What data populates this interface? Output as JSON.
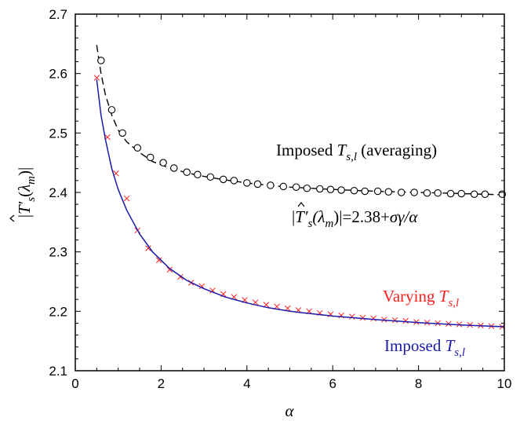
{
  "chart_data": {
    "type": "line",
    "xlabel": "α",
    "ylabel": {
      "abs_open": "|",
      "base": "T",
      "prime": "′",
      "sub": "s",
      "paren_open": "(",
      "lambda": "λ",
      "lambda_sub": "m",
      "paren_close": ")",
      "abs_close": "|"
    },
    "xlim": [
      0,
      10
    ],
    "ylim": [
      2.1,
      2.7
    ],
    "x_ticks": [
      "0",
      "2",
      "4",
      "6",
      "8",
      "10"
    ],
    "y_ticks": [
      "2.1",
      "2.2",
      "2.3",
      "2.4",
      "2.5",
      "2.6",
      "2.7"
    ],
    "grid": false,
    "series": [
      {
        "name": "Imposed T_{s,l} (averaging)",
        "marker": "circle",
        "color": "#000000",
        "x": [
          0.6,
          0.85,
          1.1,
          1.45,
          1.75,
          2.05,
          2.3,
          2.6,
          2.85,
          3.15,
          3.45,
          3.7,
          4.0,
          4.25,
          4.55,
          4.85,
          5.15,
          5.4,
          5.7,
          5.95,
          6.2,
          6.5,
          6.75,
          7.05,
          7.3,
          7.6,
          7.9,
          8.2,
          8.45,
          8.75,
          9.0,
          9.3,
          9.55,
          9.95
        ],
        "y": [
          2.622,
          2.539,
          2.5,
          2.475,
          2.459,
          2.45,
          2.441,
          2.434,
          2.43,
          2.426,
          2.422,
          2.42,
          2.416,
          2.414,
          2.412,
          2.41,
          2.409,
          2.407,
          2.406,
          2.405,
          2.404,
          2.403,
          2.402,
          2.402,
          2.401,
          2.4,
          2.4,
          2.399,
          2.399,
          2.398,
          2.398,
          2.397,
          2.397,
          2.397
        ]
      },
      {
        "name": "Fit",
        "marker": "dashed-line",
        "color": "#000000",
        "x": [
          0.5,
          0.6,
          0.7,
          0.85,
          1.0,
          1.2,
          1.5,
          1.8,
          2.2,
          2.6,
          3.0,
          3.5,
          4.0,
          4.5,
          5.0,
          6.0,
          7.0,
          8.0,
          9.0,
          10.0
        ],
        "y": [
          2.648,
          2.6,
          2.565,
          2.53,
          2.505,
          2.485,
          2.467,
          2.452,
          2.441,
          2.433,
          2.427,
          2.421,
          2.416,
          2.412,
          2.409,
          2.405,
          2.402,
          2.4,
          2.398,
          2.396
        ]
      },
      {
        "name": "Varying T_{s,l}",
        "marker": "x",
        "color": "#ff2020",
        "x": [
          0.5,
          0.75,
          0.95,
          1.2,
          1.45,
          1.7,
          1.95,
          2.2,
          2.45,
          2.7,
          2.95,
          3.2,
          3.45,
          3.7,
          3.95,
          4.2,
          4.45,
          4.7,
          4.95,
          5.2,
          5.45,
          5.7,
          5.95,
          6.2,
          6.45,
          6.7,
          6.95,
          7.2,
          7.45,
          7.7,
          7.95,
          8.2,
          8.45,
          8.7,
          8.95,
          9.2,
          9.45,
          9.7,
          9.95
        ],
        "y": [
          2.593,
          2.493,
          2.432,
          2.39,
          2.336,
          2.306,
          2.286,
          2.27,
          2.258,
          2.248,
          2.242,
          2.235,
          2.229,
          2.224,
          2.219,
          2.215,
          2.211,
          2.208,
          2.205,
          2.202,
          2.2,
          2.197,
          2.195,
          2.193,
          2.191,
          2.189,
          2.188,
          2.186,
          2.185,
          2.184,
          2.182,
          2.181,
          2.18,
          2.179,
          2.178,
          2.177,
          2.176,
          2.175,
          2.174
        ]
      },
      {
        "name": "Imposed T_{s,l}",
        "marker": "solid-line",
        "color": "#1a1aaa",
        "x": [
          0.5,
          0.6,
          0.7,
          0.85,
          1.0,
          1.2,
          1.5,
          1.8,
          2.2,
          2.6,
          3.0,
          3.5,
          4.0,
          4.5,
          5.0,
          5.5,
          6.0,
          7.0,
          8.0,
          9.0,
          10.0
        ],
        "y": [
          2.59,
          2.53,
          2.49,
          2.44,
          2.405,
          2.37,
          2.33,
          2.3,
          2.272,
          2.252,
          2.238,
          2.224,
          2.214,
          2.206,
          2.2,
          2.196,
          2.192,
          2.186,
          2.181,
          2.177,
          2.174
        ]
      }
    ],
    "annotations": {
      "averaging": {
        "prefix": "Imposed ",
        "var": "T",
        "sub": "s,l",
        "suffix": " (averaging)",
        "color": "#000000"
      },
      "formula": {
        "open": "|",
        "base": "T",
        "prime": "′",
        "sub": "s",
        "paren": "(λ",
        "lambda_sub": "m",
        "rest": ")|=2.38+",
        "tail": "σγ/α",
        "color": "#000000"
      },
      "varying": {
        "prefix": "Varying ",
        "var": "T",
        "sub": "s,l",
        "color": "#ff2020"
      },
      "imposed": {
        "prefix": "Imposed ",
        "var": "T",
        "sub": "s,l",
        "color": "#1a1aaa"
      }
    }
  }
}
